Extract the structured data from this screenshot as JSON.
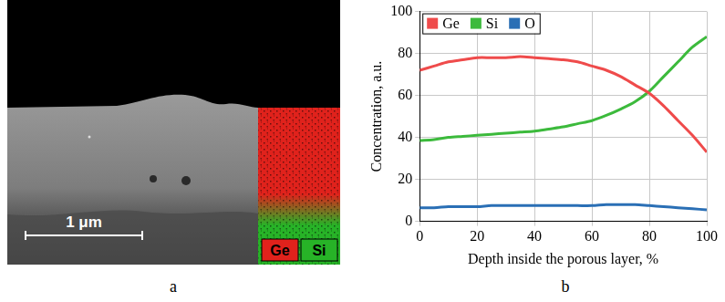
{
  "chart_data": {
    "type": "line",
    "x_label": "Depth inside the porous layer, %",
    "y_label": "Concentration, a.u.",
    "x": [
      0,
      5,
      10,
      15,
      20,
      25,
      30,
      35,
      40,
      45,
      50,
      55,
      60,
      65,
      70,
      75,
      80,
      85,
      90,
      95,
      100
    ],
    "series": [
      {
        "name": "Ge",
        "color": "#ef4b4b",
        "values": [
          72,
          74,
          76,
          77,
          78,
          78,
          78,
          78.5,
          78,
          77.5,
          77,
          76,
          74,
          72,
          69,
          65,
          61,
          55,
          48,
          41,
          33
        ]
      },
      {
        "name": "Si",
        "color": "#3cba3c",
        "values": [
          38.5,
          39,
          40,
          40.5,
          41,
          41.5,
          42,
          42.5,
          43,
          44,
          45,
          46.5,
          48,
          50.5,
          53.5,
          57,
          62,
          69,
          76,
          83,
          88
        ]
      },
      {
        "name": "O",
        "color": "#2a6fb5",
        "values": [
          6.5,
          6.5,
          7,
          7,
          7,
          7.5,
          7.5,
          7.5,
          7.5,
          7.5,
          7.5,
          7.5,
          7.5,
          8,
          8,
          8,
          7.5,
          7,
          6.5,
          6,
          5.5
        ]
      }
    ],
    "xlim": [
      0,
      100
    ],
    "xticks": [
      0,
      20,
      40,
      60,
      80,
      100
    ],
    "ylim": [
      0,
      100
    ],
    "yticks": [
      0,
      20,
      40,
      60,
      80,
      100
    ],
    "grid": true,
    "legend": "upper left"
  },
  "micrograph": {
    "scale_bar": "1 μm",
    "elements": [
      {
        "name": "Ge",
        "color": "#e0221c"
      },
      {
        "name": "Si",
        "color": "#27b327"
      }
    ]
  },
  "panel_labels": [
    "a",
    "b"
  ]
}
